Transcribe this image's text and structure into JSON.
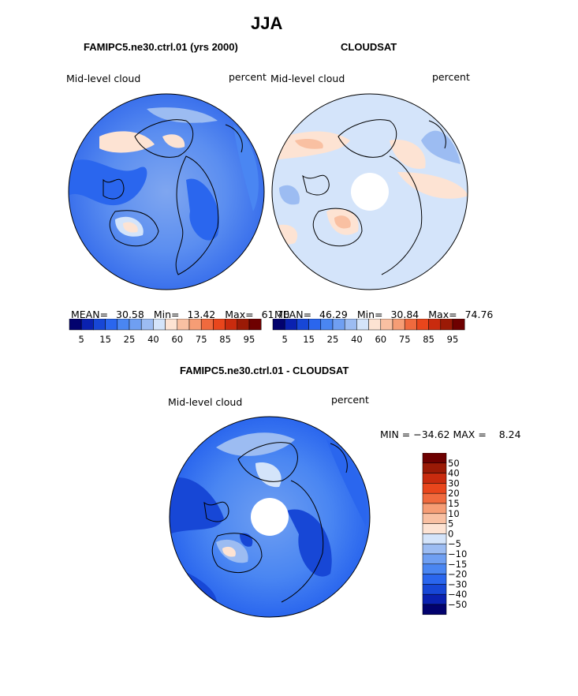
{
  "figure": {
    "title": "JJA"
  },
  "colors": {
    "scale": [
      "#02026e",
      "#0a21b0",
      "#1747d6",
      "#2a66ee",
      "#4a86f2",
      "#6f9ff2",
      "#9cbcf2",
      "#d4e4fa",
      "#fde3d3",
      "#f9c0a2",
      "#f69d75",
      "#f06a3e",
      "#e9461c",
      "#c92b0e",
      "#9b1a06",
      "#6e0000"
    ],
    "land_outline": "#000000",
    "missing": "#ffffff"
  },
  "panels": [
    {
      "title": "FAMIPC5.ne30.ctrl.01 (yrs 2000)",
      "left_label": "Mid-level cloud",
      "right_label": "percent",
      "stats": {
        "mean_label": "MEAN=",
        "mean": "30.58",
        "min_label": "Min=",
        "min": "13.42",
        "max_label": "Max=",
        "max": "61.70"
      },
      "colorbar_ticks": [
        "5",
        "15",
        "25",
        "40",
        "60",
        "75",
        "85",
        "95"
      ]
    },
    {
      "title": "CLOUDSAT",
      "left_label": "Mid-level cloud",
      "right_label": "percent",
      "stats": {
        "mean_label": "MEAN=",
        "mean": "46.29",
        "min_label": "Min=",
        "min": "30.84",
        "max_label": "Max=",
        "max": "74.76"
      },
      "colorbar_ticks": [
        "5",
        "15",
        "25",
        "40",
        "60",
        "75",
        "85",
        "95"
      ]
    },
    {
      "title": "FAMIPC5.ne30.ctrl.01 - CLOUDSAT",
      "left_label": "Mid-level cloud",
      "right_label": "percent",
      "stats_text": "MIN = −34.62 MAX =    8.24",
      "colorbar_ticks": [
        "50",
        "40",
        "30",
        "20",
        "15",
        "10",
        "5",
        "0",
        "−5",
        "−10",
        "−15",
        "−20",
        "−30",
        "−40",
        "−50"
      ]
    }
  ],
  "chart_data": [
    {
      "type": "heatmap",
      "projection": "north-polar-stereographic",
      "title": "FAMIPC5.ne30.ctrl.01 (yrs 2000)",
      "variable": "Mid-level cloud",
      "units": "percent",
      "mean": 30.58,
      "min": 13.42,
      "max": 61.7,
      "levels": [
        5,
        10,
        15,
        20,
        25,
        30,
        35,
        40,
        50,
        60,
        65,
        75,
        80,
        85,
        90,
        95
      ],
      "colorbar_ticks": [
        5,
        15,
        25,
        40,
        60,
        75,
        85,
        95
      ]
    },
    {
      "type": "heatmap",
      "projection": "north-polar-stereographic",
      "title": "CLOUDSAT",
      "variable": "Mid-level cloud",
      "units": "percent",
      "mean": 46.29,
      "min": 30.84,
      "max": 74.76,
      "levels": [
        5,
        10,
        15,
        20,
        25,
        30,
        35,
        40,
        50,
        60,
        65,
        75,
        80,
        85,
        90,
        95
      ],
      "colorbar_ticks": [
        5,
        15,
        25,
        40,
        60,
        75,
        85,
        95
      ]
    },
    {
      "type": "heatmap",
      "projection": "north-polar-stereographic",
      "title": "FAMIPC5.ne30.ctrl.01 - CLOUDSAT",
      "variable": "Mid-level cloud",
      "units": "percent",
      "min": -34.62,
      "max": 8.24,
      "colorbar_ticks": [
        50,
        40,
        30,
        20,
        15,
        10,
        5,
        0,
        -5,
        -10,
        -15,
        -20,
        -30,
        -40,
        -50
      ]
    }
  ]
}
